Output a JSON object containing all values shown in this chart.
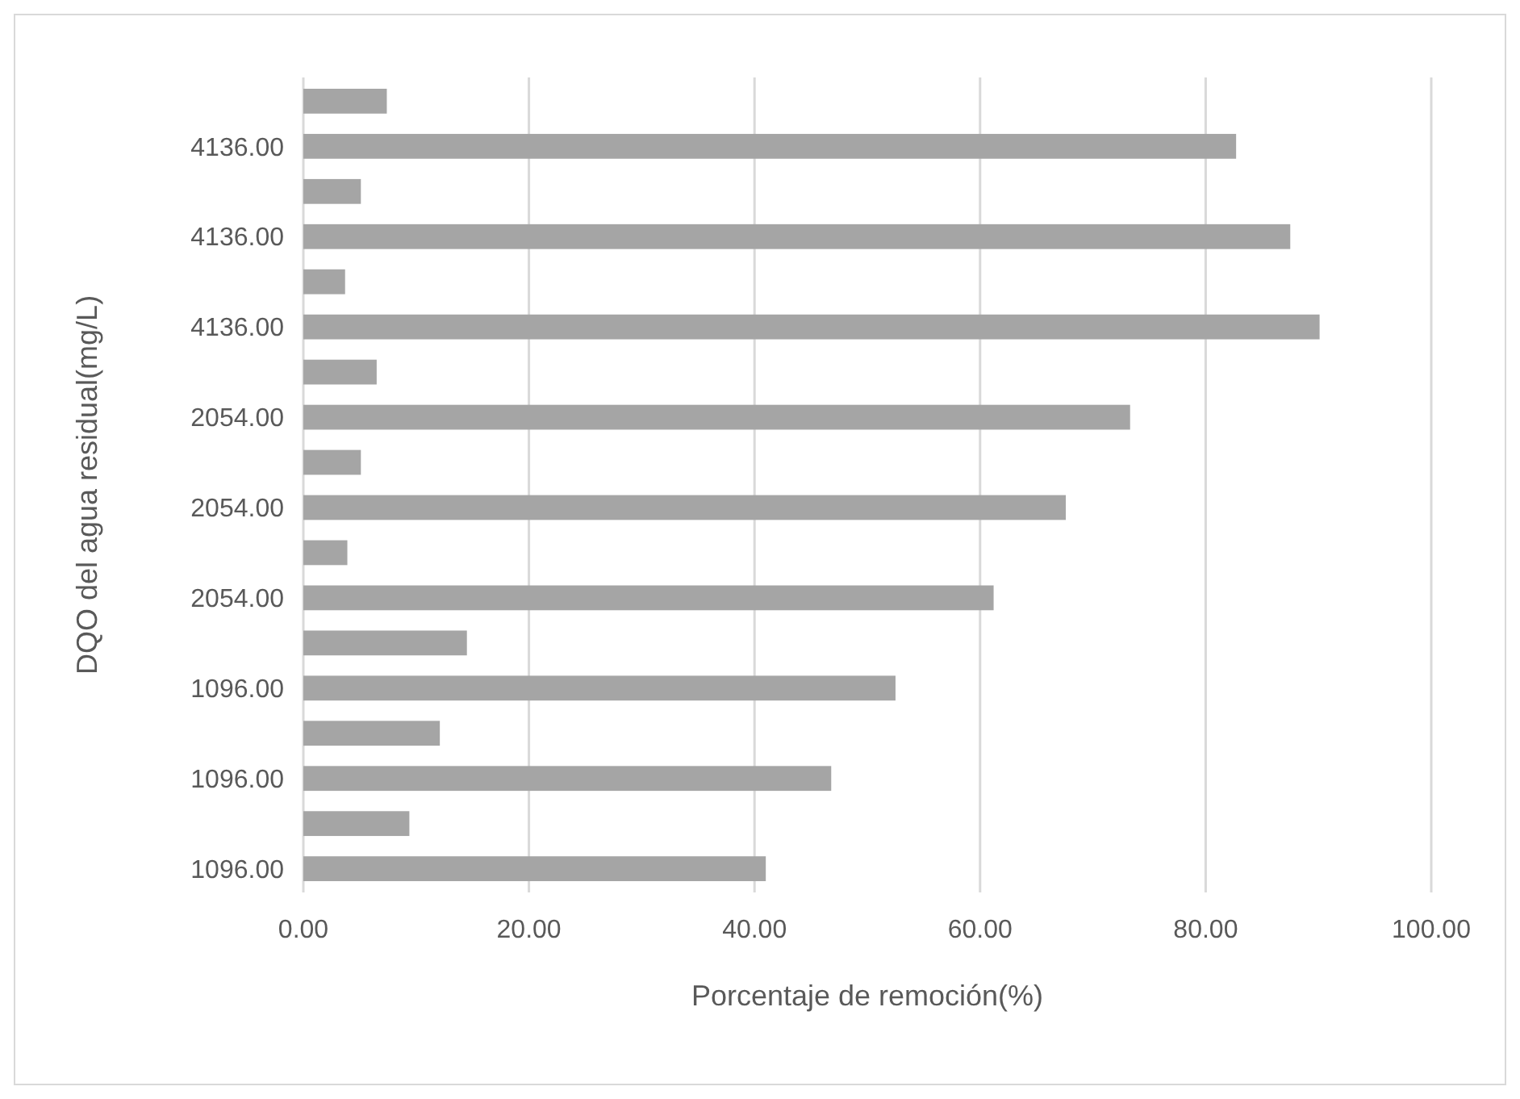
{
  "chart_data": {
    "type": "bar",
    "orientation": "horizontal",
    "xlabel": "Porcentaje de remoción(%)",
    "ylabel": "DQO del agua residual(mg/L)",
    "categories": [
      null,
      "4136.00",
      null,
      "4136.00",
      null,
      "4136.00",
      null,
      "2054.00",
      null,
      "2054.00",
      null,
      "2054.00",
      null,
      "1096.00",
      null,
      "1096.00",
      null,
      "1096.00"
    ],
    "values": [
      7.4,
      82.7,
      5.1,
      87.5,
      3.7,
      90.1,
      6.5,
      73.3,
      5.1,
      67.6,
      3.9,
      61.2,
      14.5,
      52.5,
      12.1,
      46.8,
      9.4,
      41.0
    ],
    "color": "#a5a5a5",
    "xlim": [
      0,
      100
    ],
    "xticks": [
      {
        "value": 0,
        "label": "0.00"
      },
      {
        "value": 20,
        "label": "20.00"
      },
      {
        "value": 40,
        "label": "40.00"
      },
      {
        "value": 60,
        "label": "60.00"
      },
      {
        "value": 80,
        "label": "80.00"
      },
      {
        "value": 100,
        "label": "100.00"
      }
    ],
    "grid": "x"
  }
}
